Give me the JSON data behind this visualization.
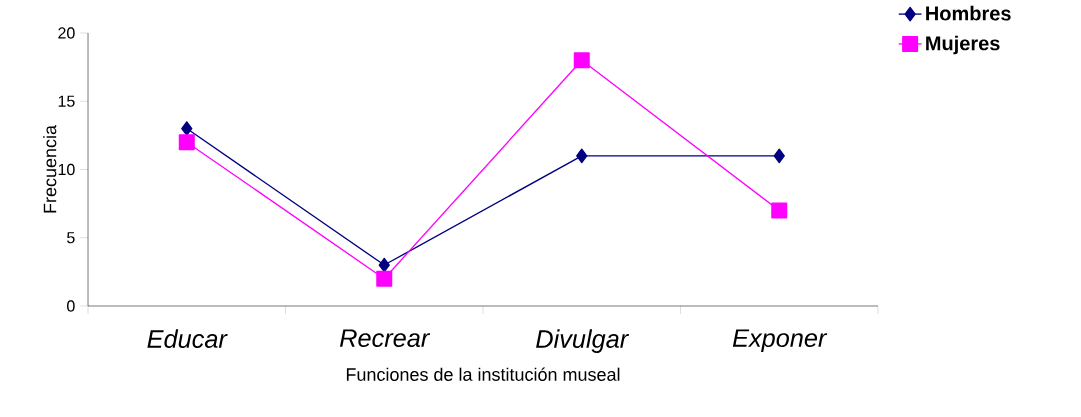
{
  "chart_data": {
    "type": "line",
    "xlabel": "Funciones de la institución museal",
    "ylabel": "Frecuencia",
    "categories": [
      "Educar",
      "Recrear",
      "Divulgar",
      "Exponer"
    ],
    "series": [
      {
        "name": "Hombres",
        "color": "#000080",
        "marker": "diamond",
        "values": [
          13,
          3,
          11,
          11
        ]
      },
      {
        "name": "Mujeres",
        "color": "#ff00ff",
        "marker": "square",
        "values": [
          12,
          2,
          18,
          7
        ]
      }
    ],
    "ylim": [
      0,
      20
    ],
    "yticks": [
      0,
      5,
      10,
      15,
      20
    ],
    "grid": false,
    "legend": "top right",
    "line_style": "solid"
  }
}
